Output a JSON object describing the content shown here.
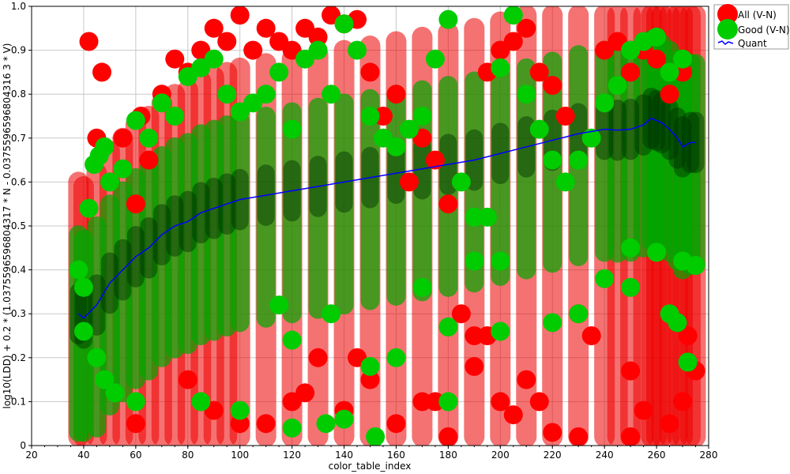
{
  "chart_data": {
    "type": "scatter",
    "xlabel": "color_table_index",
    "ylabel": "log10(LDD) + 0.2 * (1.0375596596804317 * N - 0.0375596596804316 3 * V)",
    "xlim": [
      20,
      280
    ],
    "ylim": [
      0,
      1.0
    ],
    "x_ticks": [
      20,
      40,
      60,
      80,
      100,
      120,
      140,
      160,
      180,
      200,
      220,
      240,
      260,
      280
    ],
    "y_ticks": [
      0,
      0.1,
      0.2,
      0.3,
      0.4,
      0.5,
      0.6,
      0.7,
      0.8,
      0.9,
      1.0
    ],
    "x_tick_labels": [
      "20",
      "40",
      "60",
      "80",
      "100",
      "120",
      "140",
      "160",
      "180",
      "200",
      "220",
      "240",
      "260",
      "280"
    ],
    "y_tick_labels": [
      "0",
      "0.1",
      "0.2",
      "0.3",
      "0.4",
      "0.5",
      "0.6",
      "0.7",
      "0.8",
      "0.9",
      "1.0"
    ],
    "grid": true,
    "legend_position": "top-right-outside",
    "series": [
      {
        "name": "All (V-N)",
        "kind": "scatter",
        "color": "#ff0000",
        "x": [
          42,
          47,
          45,
          55,
          60,
          62,
          65,
          70,
          75,
          80,
          85,
          90,
          95,
          100,
          105,
          110,
          115,
          120,
          125,
          130,
          135,
          140,
          145,
          150,
          155,
          160,
          165,
          170,
          175,
          180,
          185,
          190,
          195,
          200,
          205,
          210,
          215,
          220,
          225,
          230,
          240,
          245,
          250,
          255,
          260,
          265,
          270,
          275,
          100,
          120,
          140,
          160,
          180,
          200,
          220,
          250,
          265,
          130,
          150,
          170,
          190,
          210,
          230,
          250,
          270,
          60,
          80,
          90,
          110,
          125,
          145,
          175,
          195,
          205,
          215,
          235,
          255,
          272
        ],
        "y": [
          0.92,
          0.85,
          0.7,
          0.7,
          0.55,
          0.75,
          0.65,
          0.8,
          0.88,
          0.85,
          0.9,
          0.95,
          0.92,
          0.98,
          0.9,
          0.95,
          0.92,
          0.9,
          0.95,
          0.93,
          0.98,
          0.96,
          0.97,
          0.85,
          0.75,
          0.8,
          0.6,
          0.7,
          0.65,
          0.55,
          0.3,
          0.25,
          0.85,
          0.9,
          0.92,
          0.95,
          0.85,
          0.82,
          0.75,
          0.3,
          0.9,
          0.92,
          0.85,
          0.9,
          0.88,
          0.8,
          0.85,
          0.17,
          0.05,
          0.1,
          0.08,
          0.05,
          0.02,
          0.1,
          0.03,
          0.02,
          0.05,
          0.2,
          0.15,
          0.1,
          0.18,
          0.15,
          0.02,
          0.17,
          0.1,
          0.05,
          0.15,
          0.08,
          0.05,
          0.12,
          0.2,
          0.1,
          0.25,
          0.07,
          0.1,
          0.25,
          0.08,
          0.25
        ]
      },
      {
        "name": "Good (V-N)",
        "kind": "scatter",
        "color": "#00cc00",
        "x": [
          38,
          40,
          42,
          44,
          46,
          48,
          50,
          55,
          60,
          65,
          70,
          75,
          80,
          85,
          90,
          95,
          100,
          105,
          110,
          115,
          120,
          125,
          130,
          135,
          140,
          145,
          150,
          155,
          160,
          165,
          170,
          175,
          180,
          185,
          190,
          195,
          200,
          205,
          210,
          215,
          220,
          225,
          230,
          235,
          240,
          245,
          250,
          255,
          260,
          265,
          270,
          275,
          120,
          133,
          152,
          180,
          200,
          220,
          240,
          250,
          265,
          268,
          272,
          45,
          48,
          52,
          120,
          140,
          160,
          180,
          200,
          230,
          250,
          260,
          270,
          40,
          60,
          85,
          100,
          115,
          135,
          150,
          170,
          190
        ],
        "y": [
          0.4,
          0.36,
          0.54,
          0.64,
          0.66,
          0.68,
          0.6,
          0.63,
          0.74,
          0.7,
          0.78,
          0.75,
          0.84,
          0.86,
          0.88,
          0.8,
          0.76,
          0.78,
          0.8,
          0.85,
          0.72,
          0.88,
          0.9,
          0.8,
          0.96,
          0.9,
          0.75,
          0.7,
          0.68,
          0.72,
          0.75,
          0.88,
          0.97,
          0.6,
          0.42,
          0.52,
          0.86,
          0.98,
          0.8,
          0.72,
          0.65,
          0.6,
          0.65,
          0.7,
          0.78,
          0.82,
          0.9,
          0.92,
          0.93,
          0.85,
          0.88,
          0.41,
          0.24,
          0.05,
          0.02,
          0.1,
          0.26,
          0.28,
          0.38,
          0.45,
          0.3,
          0.28,
          0.19,
          0.2,
          0.15,
          0.12,
          0.04,
          0.06,
          0.2,
          0.27,
          0.42,
          0.3,
          0.36,
          0.44,
          0.42,
          0.26,
          0.1,
          0.1,
          0.08,
          0.32,
          0.3,
          0.18,
          0.36,
          0.52
        ]
      },
      {
        "name": "Quant",
        "kind": "line",
        "color": "#0000ff",
        "x": [
          38,
          40,
          45,
          50,
          55,
          60,
          65,
          70,
          75,
          80,
          85,
          90,
          95,
          100,
          110,
          120,
          130,
          140,
          150,
          160,
          170,
          180,
          190,
          200,
          210,
          220,
          230,
          240,
          245,
          250,
          255,
          258,
          260,
          262,
          265,
          268,
          270,
          273,
          275
        ],
        "y": [
          0.3,
          0.29,
          0.32,
          0.37,
          0.4,
          0.43,
          0.45,
          0.48,
          0.5,
          0.51,
          0.53,
          0.54,
          0.55,
          0.56,
          0.57,
          0.58,
          0.59,
          0.6,
          0.61,
          0.62,
          0.63,
          0.64,
          0.65,
          0.665,
          0.68,
          0.695,
          0.71,
          0.72,
          0.718,
          0.72,
          0.73,
          0.745,
          0.74,
          0.735,
          0.72,
          0.7,
          0.68,
          0.69,
          0.69
        ]
      }
    ]
  }
}
